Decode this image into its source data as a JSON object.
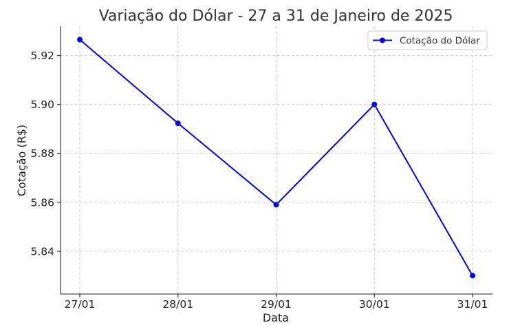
{
  "chart_data": {
    "type": "line",
    "title": "Variação do Dólar - 27 a 31 de Janeiro de 2025",
    "xlabel": "Data",
    "ylabel": "Cotação (R$)",
    "categories": [
      "27/01",
      "28/01",
      "29/01",
      "30/01",
      "31/01"
    ],
    "series": [
      {
        "name": "Cotação do Dólar",
        "values": [
          5.9265,
          5.8923,
          5.859,
          5.9,
          5.83
        ],
        "color": "#0000ee",
        "marker": "circle"
      }
    ],
    "ylim": [
      5.8225,
      5.932
    ],
    "yticks": [
      5.84,
      5.86,
      5.88,
      5.9,
      5.92
    ],
    "ytick_labels": [
      "5.84",
      "5.86",
      "5.88",
      "5.90",
      "5.92"
    ],
    "grid": true,
    "legend": "top-right"
  }
}
